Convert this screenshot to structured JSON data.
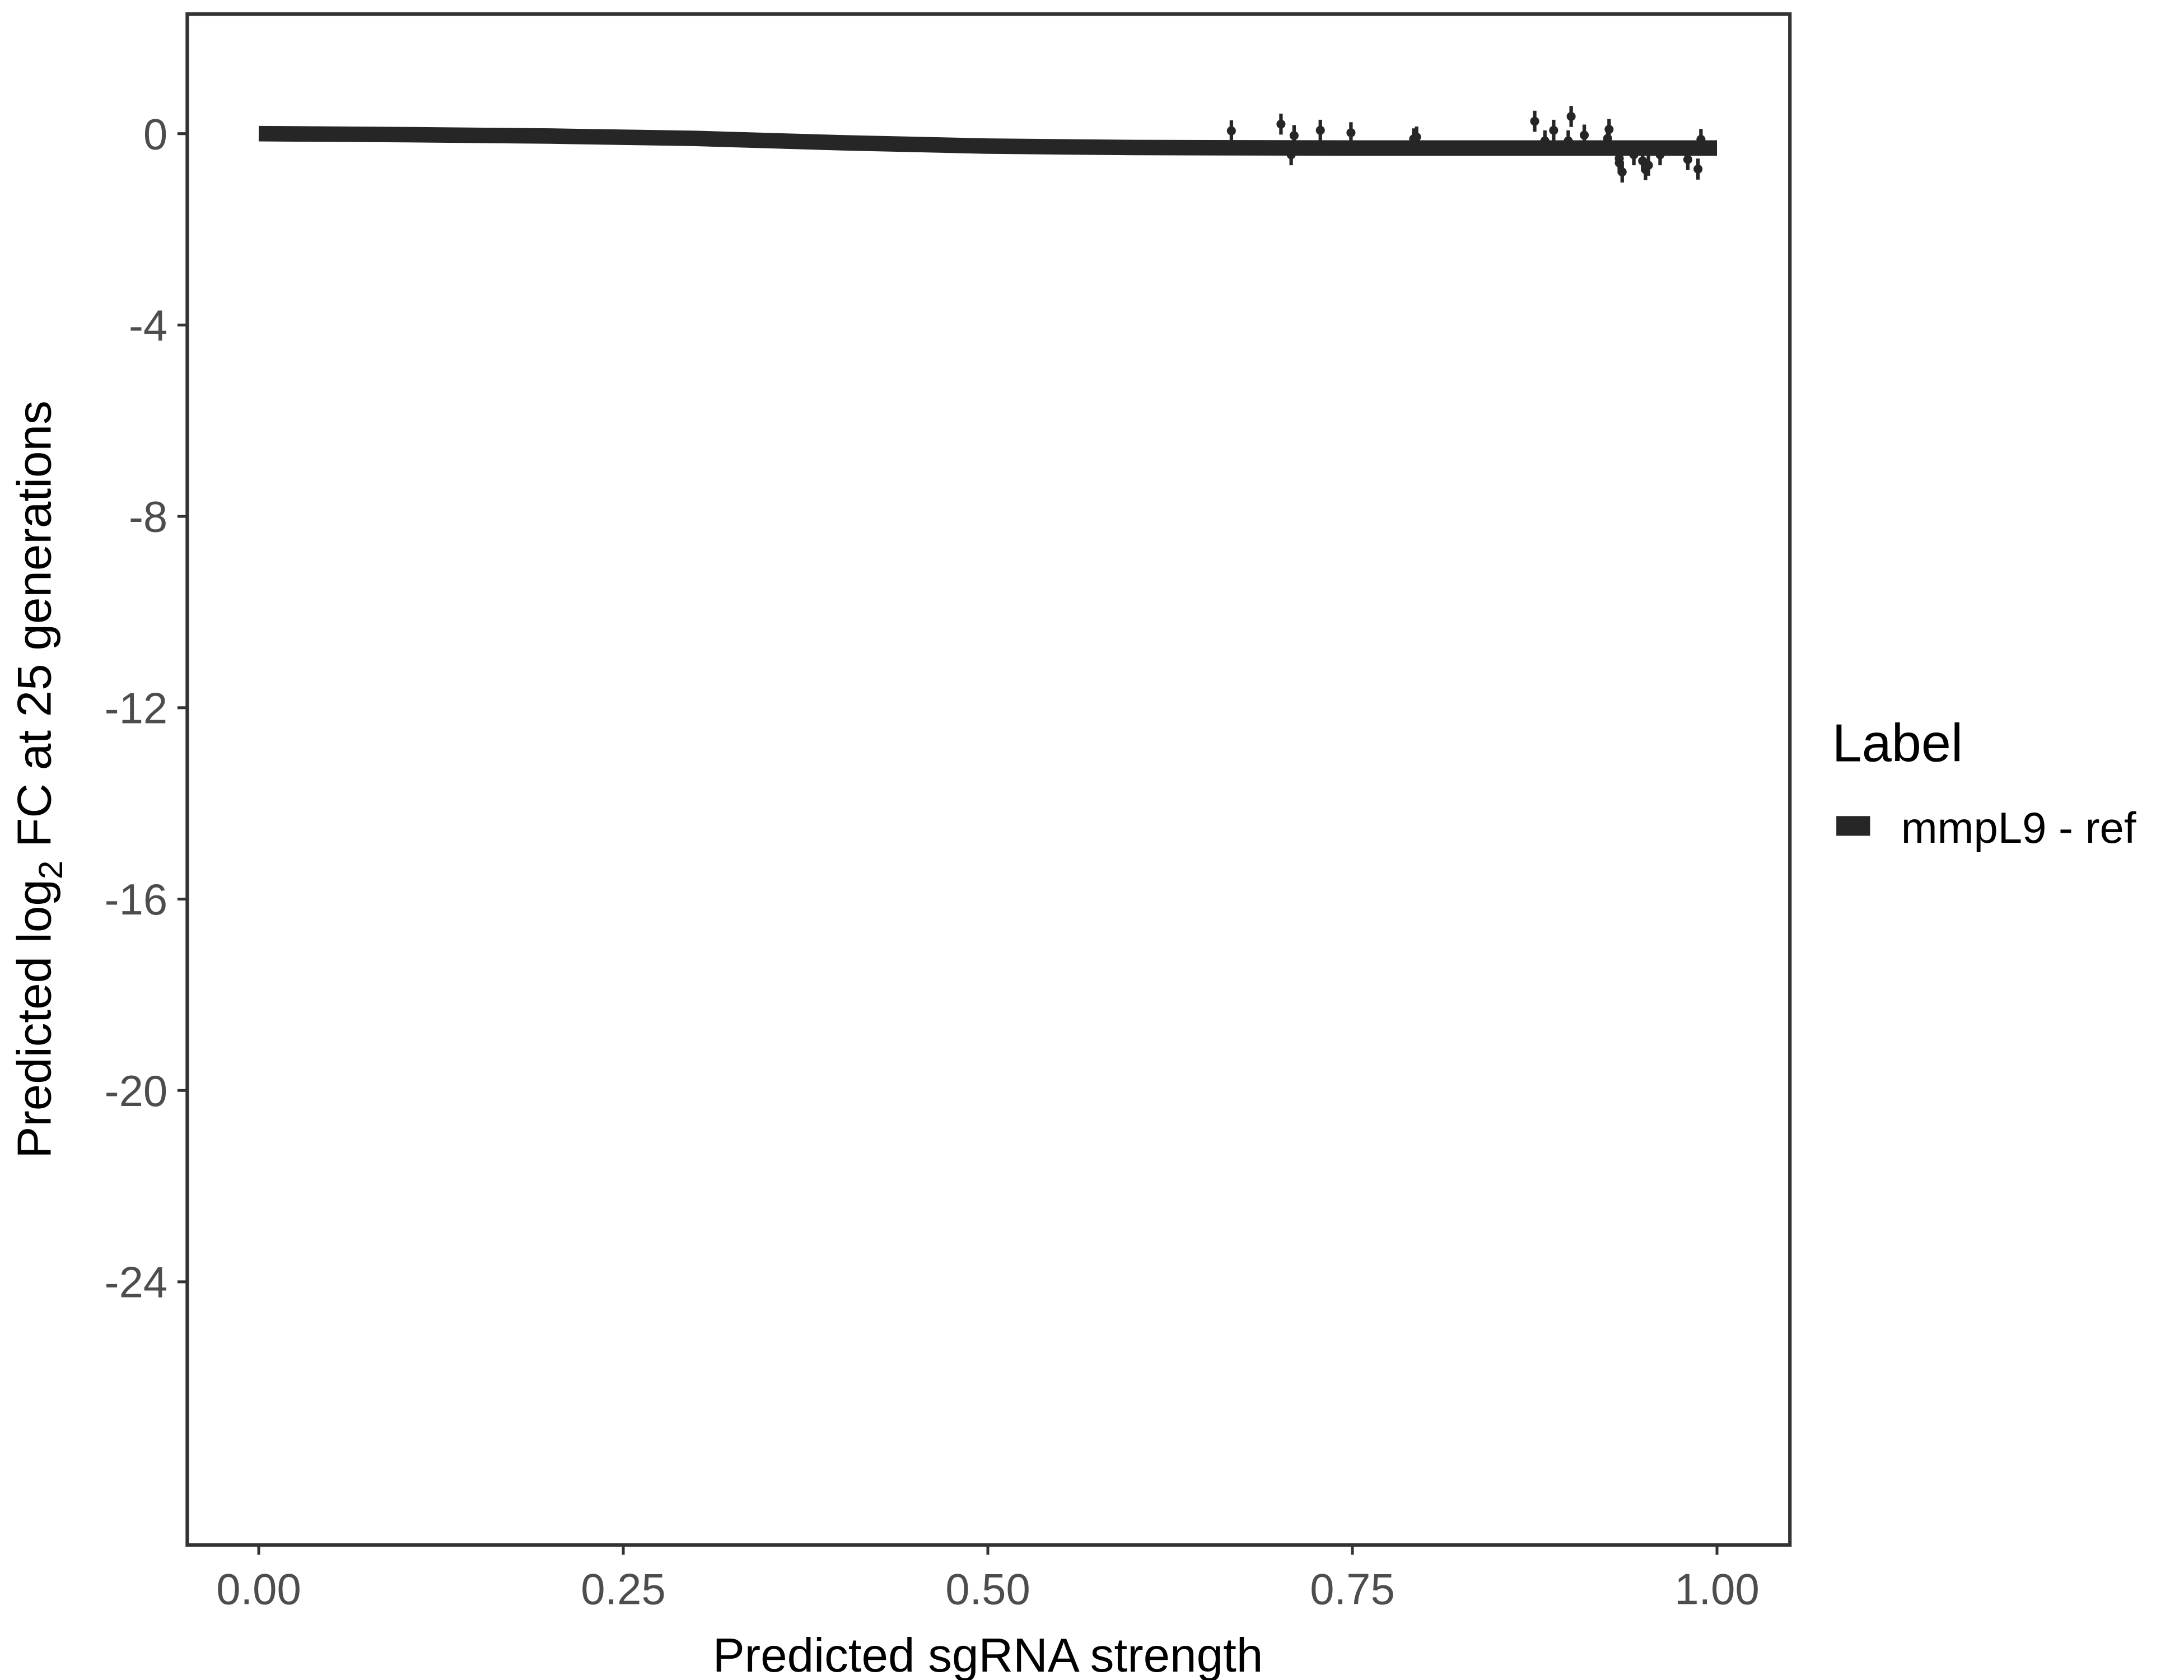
{
  "chart_data": {
    "type": "line",
    "title": "",
    "xlabel": "Predicted sgRNA strength",
    "ylabel_parts": [
      "Predicted  log",
      "2",
      " FC at 25 generations"
    ],
    "xlim": [
      -0.049,
      1.05
    ],
    "ylim": [
      -29.5,
      2.5
    ],
    "x_ticks": [
      0,
      0.25,
      0.5,
      0.75,
      1.0
    ],
    "x_tick_labels": [
      "0.00",
      "0.25",
      "0.50",
      "0.75",
      "1.00"
    ],
    "y_ticks": [
      0,
      -4,
      -8,
      -12,
      -16,
      -20,
      -24
    ],
    "y_tick_labels": [
      "0",
      "-4",
      "-8",
      "-12",
      "-16",
      "-20",
      "-24"
    ],
    "grid": false,
    "legend": {
      "title": "Label",
      "position": "right",
      "entries": [
        "mmpL9 - ref"
      ]
    },
    "series": [
      {
        "name": "mmpL9 - ref",
        "color": "#262626",
        "fit": {
          "x": [
            0,
            0.1,
            0.2,
            0.3,
            0.4,
            0.5,
            0.6,
            0.75,
            0.9,
            1.0
          ],
          "y": [
            0.0,
            -0.02,
            -0.05,
            -0.1,
            -0.19,
            -0.26,
            -0.29,
            -0.3,
            -0.3,
            -0.3
          ],
          "ci": 0.15
        },
        "points": [
          {
            "x": 0.667,
            "y": 0.06
          },
          {
            "x": 0.701,
            "y": 0.2
          },
          {
            "x": 0.71,
            "y": -0.04
          },
          {
            "x": 0.708,
            "y": -0.44
          },
          {
            "x": 0.728,
            "y": 0.07
          },
          {
            "x": 0.749,
            "y": 0.02
          },
          {
            "x": 0.792,
            "y": -0.11
          },
          {
            "x": 0.794,
            "y": -0.07
          },
          {
            "x": 0.875,
            "y": 0.26
          },
          {
            "x": 0.882,
            "y": -0.15
          },
          {
            "x": 0.888,
            "y": 0.07
          },
          {
            "x": 0.898,
            "y": -0.15
          },
          {
            "x": 0.9,
            "y": 0.36
          },
          {
            "x": 0.909,
            "y": -0.03
          },
          {
            "x": 0.925,
            "y": -0.1
          },
          {
            "x": 0.926,
            "y": 0.09
          },
          {
            "x": 0.933,
            "y": -0.52
          },
          {
            "x": 0.933,
            "y": -0.61
          },
          {
            "x": 0.935,
            "y": -0.8
          },
          {
            "x": 0.943,
            "y": -0.44
          },
          {
            "x": 0.949,
            "y": -0.57
          },
          {
            "x": 0.951,
            "y": -0.75
          },
          {
            "x": 0.953,
            "y": -0.66
          },
          {
            "x": 0.961,
            "y": -0.44
          },
          {
            "x": 0.98,
            "y": -0.54
          },
          {
            "x": 0.987,
            "y": -0.74
          },
          {
            "x": 0.989,
            "y": -0.12
          }
        ],
        "error": 0.22
      }
    ]
  }
}
